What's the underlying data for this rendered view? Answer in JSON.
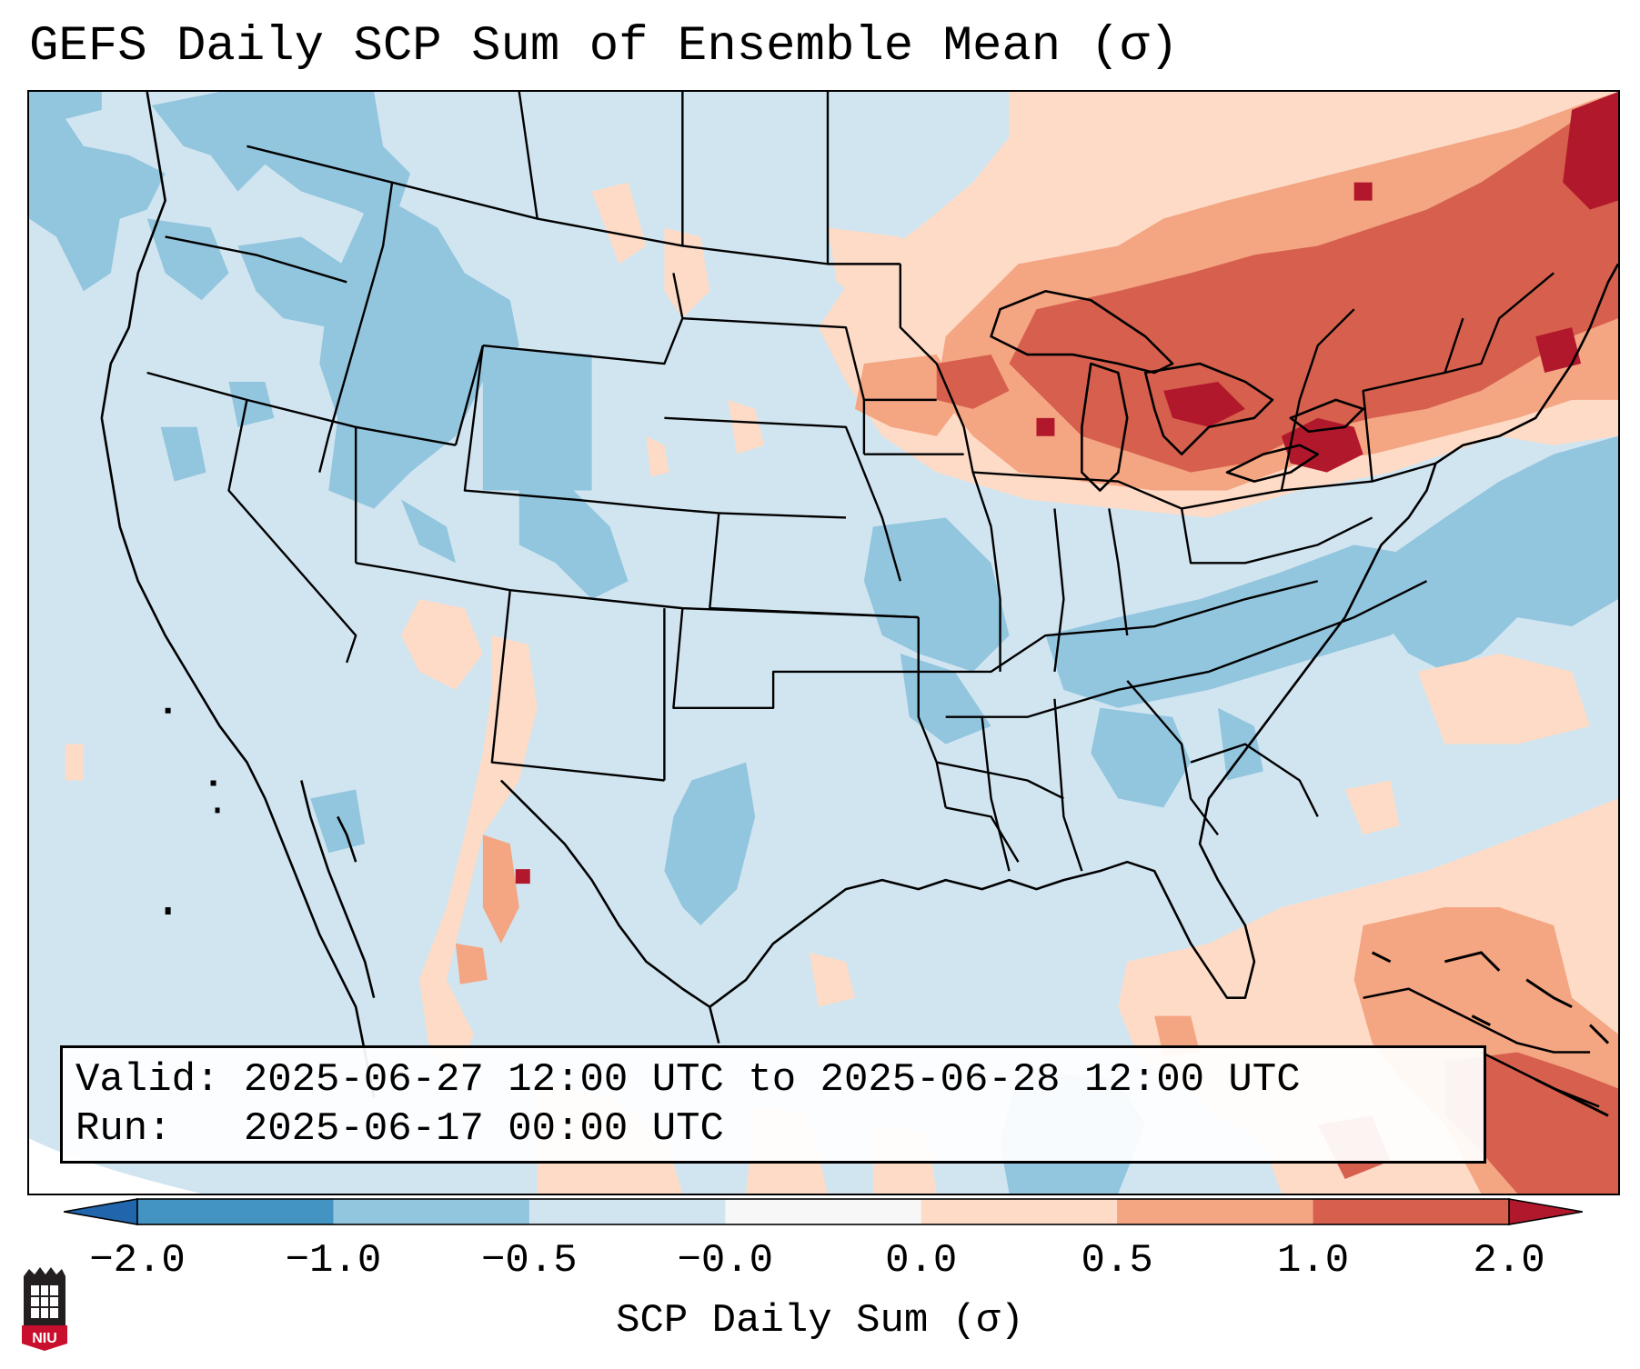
{
  "title": "GEFS Daily SCP Sum of Ensemble Mean (σ)",
  "info": {
    "valid_line": "Valid: 2025-06-27 12:00 UTC to 2025-06-28 12:00 UTC",
    "run_line": "Run:   2025-06-17 00:00 UTC"
  },
  "colorbar": {
    "label": "SCP Daily Sum (σ)",
    "ticks": [
      "−2.0",
      "−1.0",
      "−0.5",
      "−0.0",
      "0.0",
      "0.5",
      "1.0",
      "2.0"
    ],
    "colors": [
      "#4393c3",
      "#92c5de",
      "#d1e5f0",
      "#f7f7f7",
      "#fddbc7",
      "#f4a582",
      "#d6604d"
    ],
    "extend_low_color": "#2166ac",
    "extend_high_color": "#b2182b"
  },
  "logo": {
    "text": "NIU",
    "color": "#c8102e"
  }
}
